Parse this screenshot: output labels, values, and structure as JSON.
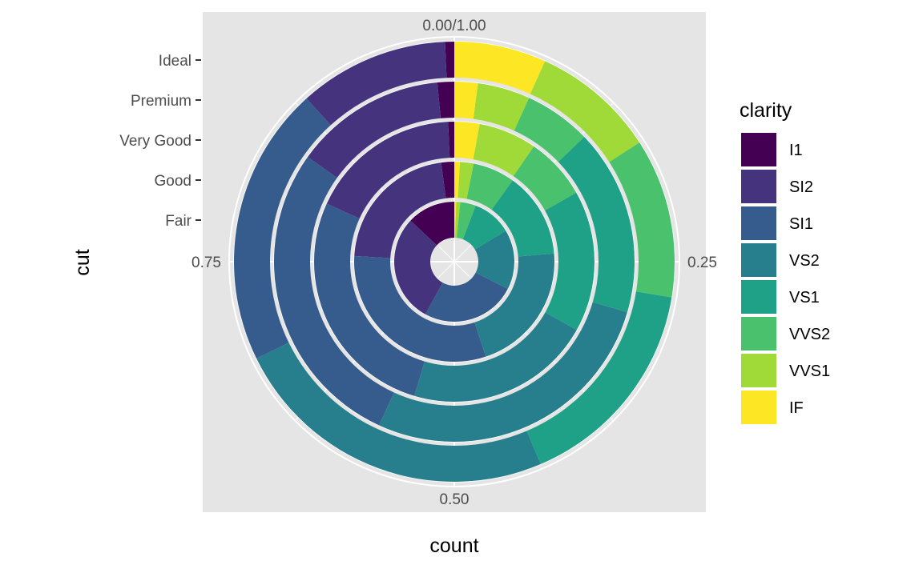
{
  "chart_data": {
    "type": "pie",
    "variant": "stacked-proportion-bar-in-polar-coordinates",
    "xlabel": "count",
    "ylabel": "cut",
    "theta_ticks": [
      "0.00/1.00",
      "0.25",
      "0.50",
      "0.75"
    ],
    "categories": [
      "Fair",
      "Good",
      "Very Good",
      "Premium",
      "Ideal"
    ],
    "legend": {
      "title": "clarity",
      "position": "right"
    },
    "series": [
      {
        "name": "I1",
        "color": "#440154",
        "values": [
          0.13,
          0.021,
          0.007,
          0.015,
          0.007
        ]
      },
      {
        "name": "SI2",
        "color": "#46337E",
        "values": [
          0.29,
          0.22,
          0.175,
          0.136,
          0.116
        ]
      },
      {
        "name": "SI1",
        "color": "#365C8D",
        "values": [
          0.255,
          0.31,
          0.272,
          0.28,
          0.216
        ]
      },
      {
        "name": "VS2",
        "color": "#277F8E",
        "values": [
          0.161,
          0.212,
          0.215,
          0.273,
          0.254
        ]
      },
      {
        "name": "VS1",
        "color": "#1FA187",
        "values": [
          0.106,
          0.138,
          0.163,
          0.167,
          0.168
        ]
      },
      {
        "name": "VVS2",
        "color": "#4AC16D",
        "values": [
          0.042,
          0.068,
          0.072,
          0.06,
          0.123
        ]
      },
      {
        "name": "VVS1",
        "color": "#A0DA39",
        "values": [
          0.011,
          0.022,
          0.067,
          0.047,
          0.096
        ]
      },
      {
        "name": "IF",
        "color": "#FDE725",
        "values": [
          0.005,
          0.009,
          0.029,
          0.021,
          0.071
        ]
      }
    ],
    "panel_background": "#E5E5E5",
    "grid": true,
    "grid_color": "#FFFFFF"
  }
}
